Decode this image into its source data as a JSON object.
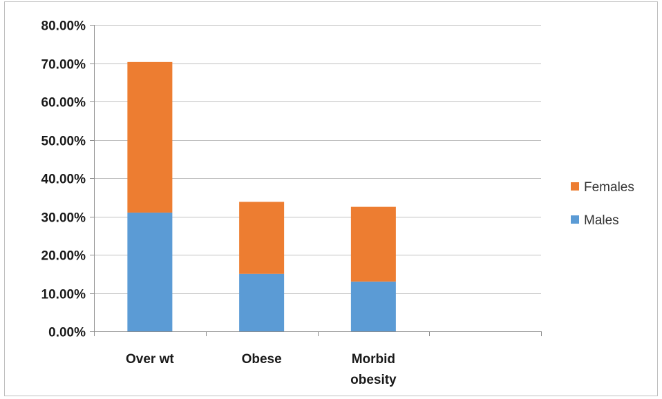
{
  "chart_data": {
    "type": "bar",
    "stacked": true,
    "categories": [
      "Over wt",
      "Obese",
      "Morbid obesity"
    ],
    "series": [
      {
        "name": "Males",
        "color": "#5B9BD5",
        "values": [
          0.31,
          0.15,
          0.13
        ]
      },
      {
        "name": "Females",
        "color": "#ED7D31",
        "values": [
          0.393,
          0.188,
          0.195
        ]
      }
    ],
    "ylim": [
      0,
      0.8
    ],
    "yticks": [
      0,
      0.1,
      0.2,
      0.3,
      0.4,
      0.5,
      0.6,
      0.7,
      0.8
    ],
    "ytick_labels": [
      "0.00%",
      "10.00%",
      "20.00%",
      "30.00%",
      "40.00%",
      "50.00%",
      "60.00%",
      "70.00%",
      "80.00%"
    ],
    "legend_order": [
      "Females",
      "Males"
    ],
    "legend_position": "right",
    "grid": true,
    "title": "",
    "xlabel": "",
    "ylabel": ""
  }
}
